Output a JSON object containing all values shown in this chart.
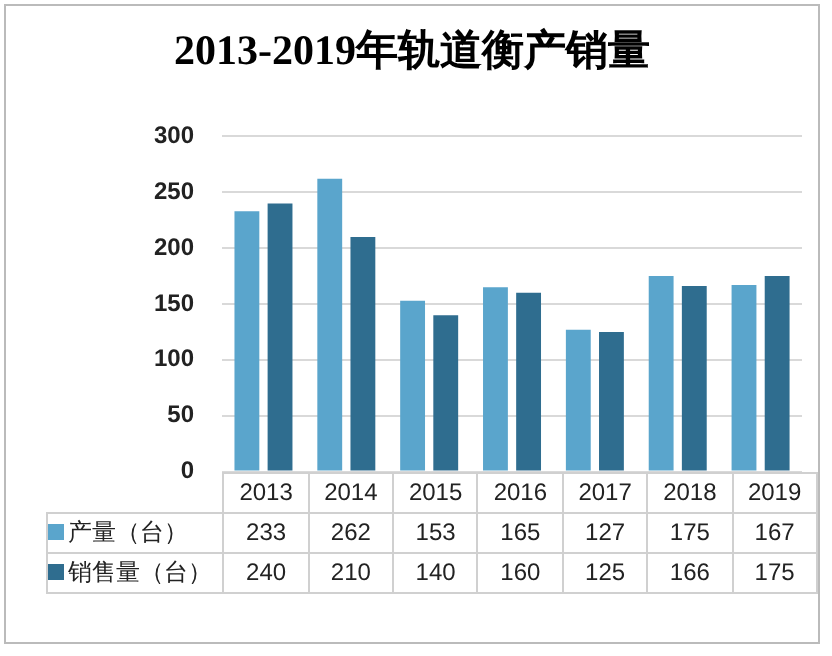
{
  "chart_data": {
    "type": "bar",
    "title": "2013-2019年轨道衡产销量",
    "categories": [
      "2013",
      "2014",
      "2015",
      "2016",
      "2017",
      "2018",
      "2019"
    ],
    "series": [
      {
        "name": "产量（台）",
        "color": "#5aa5cc",
        "values": [
          233,
          262,
          153,
          165,
          127,
          175,
          167
        ]
      },
      {
        "name": "销售量（台）",
        "color": "#2f6d8f",
        "values": [
          240,
          210,
          140,
          160,
          125,
          166,
          175
        ]
      }
    ],
    "ylim": [
      0,
      300
    ],
    "yticks": [
      0,
      50,
      100,
      150,
      200,
      250,
      300
    ],
    "grid": "y",
    "legend": "bottom",
    "data_labels": true
  }
}
